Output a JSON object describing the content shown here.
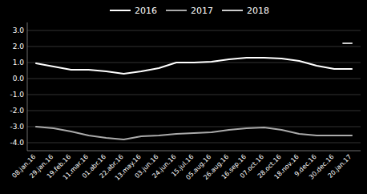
{
  "chart_data": {
    "type": "line",
    "categories": [
      "08.jan.16",
      "29.jan.16",
      "19.feb.16",
      "11.mar.16",
      "01.abr.16",
      "22.abr.16",
      "13.may.16",
      "03.jun.16",
      "24.jun.16",
      "15.jul.16",
      "05.aug.16",
      "26.aug.16",
      "16.sep.16",
      "07.oct.16",
      "28.oct.16",
      "18.nov.16",
      "9.dec.16",
      "30.dec.16",
      "20.jan.17"
    ],
    "series": [
      {
        "name": "2016",
        "color": "#ffffff",
        "values": [
          0.95,
          0.75,
          0.55,
          0.55,
          0.45,
          0.3,
          0.45,
          0.65,
          1.0,
          1.0,
          1.05,
          1.2,
          1.3,
          1.3,
          1.25,
          1.1,
          0.8,
          0.6,
          0.6
        ]
      },
      {
        "name": "2017",
        "color": "#aaaaaa",
        "values": [
          -3.0,
          -3.1,
          -3.3,
          -3.55,
          -3.7,
          -3.8,
          -3.6,
          -3.55,
          -3.45,
          -3.4,
          -3.35,
          -3.2,
          -3.1,
          -3.05,
          -3.2,
          -3.45,
          -3.55,
          -3.55,
          -3.55
        ]
      },
      {
        "name": "2018",
        "color": "#cccccc",
        "values": [
          null,
          null,
          null,
          null,
          null,
          null,
          null,
          null,
          null,
          null,
          null,
          null,
          null,
          null,
          null,
          null,
          null,
          null,
          2.2
        ]
      }
    ],
    "ylim": [
      -4.5,
      3.5
    ],
    "yticks": [
      {
        "value": -4.0,
        "label": "-4.0"
      },
      {
        "value": -3.0,
        "label": "-3.0"
      },
      {
        "value": -2.0,
        "label": "-2.0"
      },
      {
        "value": -1.0,
        "label": "-1.0"
      },
      {
        "value": 0.0,
        "label": "0.0"
      },
      {
        "value": 1.0,
        "label": "1.0"
      },
      {
        "value": 2.0,
        "label": "2.0"
      },
      {
        "value": 3.0,
        "label": "3.0"
      }
    ],
    "grid": true,
    "legend": "top"
  }
}
